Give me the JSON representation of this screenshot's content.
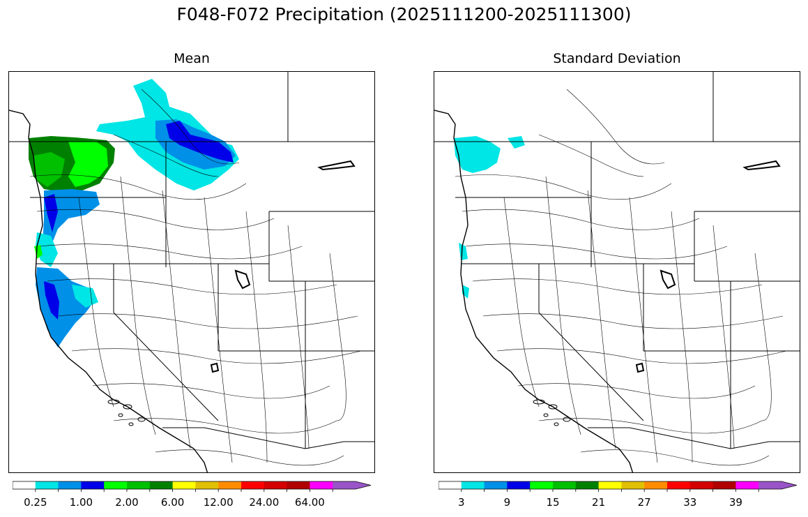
{
  "figure": {
    "suptitle": "F048-F072 Precipitation (2025111200-2025111300)"
  },
  "panels": [
    {
      "title": "Mean",
      "colorbar": {
        "colors": [
          "#ffffff",
          "#00e5e5",
          "#0090e8",
          "#0000e8",
          "#00ff00",
          "#00c000",
          "#008000",
          "#ffff00",
          "#e0c000",
          "#ff8c00",
          "#ff0000",
          "#d40000",
          "#b00000",
          "#ff00ff",
          "#9955c8"
        ],
        "extend": "max",
        "tick_labels": [
          "0.25",
          "1.00",
          "2.00",
          "6.00",
          "12.00",
          "24.00",
          "64.00"
        ]
      }
    },
    {
      "title": "Standard Deviation",
      "colorbar": {
        "colors": [
          "#ffffff",
          "#00e5e5",
          "#0090e8",
          "#0000e8",
          "#00ff00",
          "#00c000",
          "#008000",
          "#ffff00",
          "#e0c000",
          "#ff8c00",
          "#ff0000",
          "#d40000",
          "#b00000",
          "#ff00ff",
          "#9955c8"
        ],
        "extend": "max",
        "tick_labels": [
          "3",
          "9",
          "15",
          "21",
          "27",
          "33",
          "39"
        ]
      }
    }
  ]
}
